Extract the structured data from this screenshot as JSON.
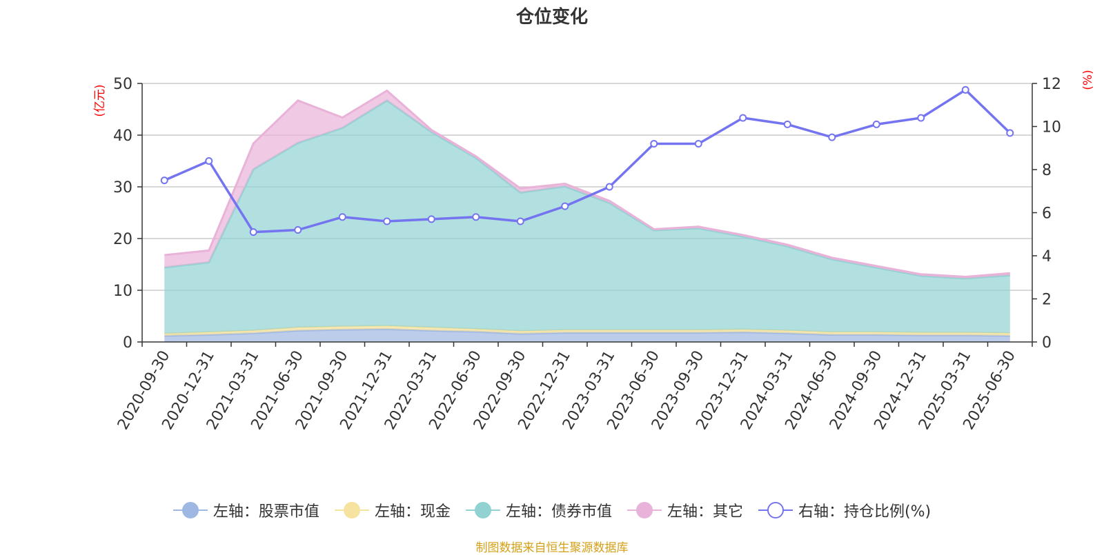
{
  "title": "仓位变化",
  "source_note": "制图数据来自恒生聚源数据库",
  "colors": {
    "stock": "#9fb8e3",
    "cash": "#f6e3a0",
    "bond": "#92d2d3",
    "other": "#e9b2d8",
    "ratio": "#7474f0",
    "unit_text": "#ff0000"
  },
  "chart_data": {
    "type": "area",
    "title": "仓位变化",
    "x": [
      "2020-09-30",
      "2020-12-31",
      "2021-03-31",
      "2021-06-30",
      "2021-09-30",
      "2021-12-31",
      "2022-03-31",
      "2022-06-30",
      "2022-09-30",
      "2022-12-31",
      "2023-03-31",
      "2023-06-30",
      "2023-09-30",
      "2023-12-31",
      "2024-03-31",
      "2024-06-30",
      "2024-09-30",
      "2024-12-31",
      "2025-03-31",
      "2025-06-30"
    ],
    "y_left": {
      "unit": "(亿元)",
      "ylim": [
        0,
        50
      ],
      "ticks": [
        "0",
        "10",
        "20",
        "30",
        "40",
        "50"
      ]
    },
    "y_right": {
      "unit": "(%)",
      "ylim": [
        0,
        12
      ],
      "ticks": [
        "0",
        "2",
        "4",
        "6",
        "8",
        "10",
        "12"
      ]
    },
    "grid": true,
    "legend_position": "bottom",
    "stacked_series": [
      {
        "name": "左轴：股票市值",
        "color": "#9fb8e3",
        "values": [
          1.2,
          1.4,
          1.7,
          2.2,
          2.4,
          2.5,
          2.2,
          2.0,
          1.6,
          1.8,
          1.8,
          1.8,
          1.8,
          1.9,
          1.7,
          1.4,
          1.4,
          1.3,
          1.3,
          1.2
        ]
      },
      {
        "name": "左轴：现金",
        "color": "#f6e3a0",
        "values": [
          0.4,
          0.5,
          0.5,
          0.6,
          0.6,
          0.6,
          0.6,
          0.5,
          0.5,
          0.5,
          0.5,
          0.5,
          0.5,
          0.5,
          0.5,
          0.5,
          0.5,
          0.5,
          0.5,
          0.5
        ]
      },
      {
        "name": "左轴：债券市值",
        "color": "#92d2d3",
        "values": [
          12.8,
          13.5,
          31.2,
          35.7,
          38.4,
          43.6,
          37.8,
          33.1,
          26.8,
          27.8,
          24.6,
          19.3,
          19.7,
          18.0,
          16.3,
          14.1,
          12.5,
          11.0,
          10.5,
          11.2
        ]
      },
      {
        "name": "左轴：其它",
        "color": "#e9b2d8",
        "values": [
          2.4,
          2.3,
          5.0,
          8.2,
          2.0,
          1.9,
          0.4,
          0.3,
          0.8,
          0.5,
          0.4,
          0.2,
          0.3,
          0.3,
          0.3,
          0.3,
          0.3,
          0.3,
          0.3,
          0.4
        ]
      }
    ],
    "line_series": [
      {
        "name": "右轴：持仓比例(%)",
        "color": "#7474f0",
        "axis": "right",
        "values": [
          7.5,
          8.4,
          5.1,
          5.2,
          5.8,
          5.6,
          5.7,
          5.8,
          5.6,
          6.3,
          7.2,
          9.2,
          9.2,
          10.4,
          10.1,
          9.5,
          10.1,
          10.4,
          11.7,
          9.7
        ]
      }
    ]
  },
  "legend": [
    {
      "label": "左轴：股票市值",
      "color": "#9fb8e3",
      "icon": "filled-circle"
    },
    {
      "label": "左轴：现金",
      "color": "#f6e3a0",
      "icon": "filled-circle"
    },
    {
      "label": "左轴：债券市值",
      "color": "#92d2d3",
      "icon": "filled-circle"
    },
    {
      "label": "左轴：其它",
      "color": "#e9b2d8",
      "icon": "filled-circle"
    },
    {
      "label": "右轴：持仓比例(%)",
      "color": "#7474f0",
      "icon": "hollow-circle"
    }
  ]
}
